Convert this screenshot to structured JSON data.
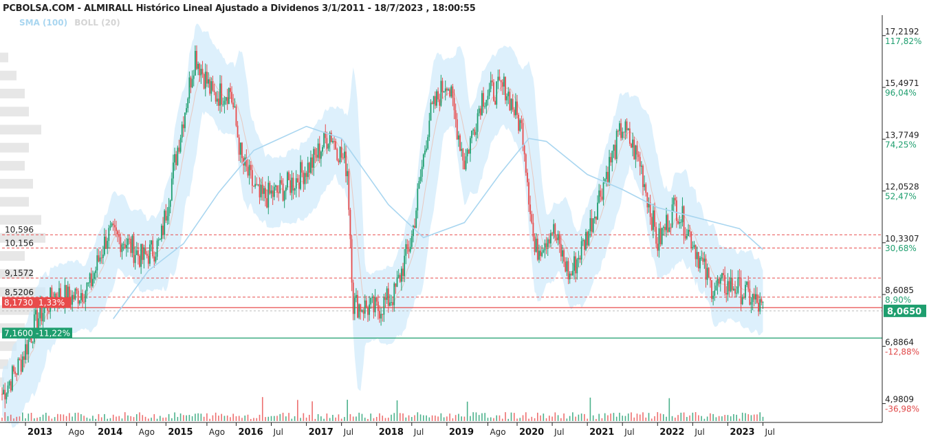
{
  "title": "PCBOLSA.COM - ALMIRALL Histórico Lineal Ajustado a Dividenos 3/1/2011 - 18/7/2023 , 18:00:55",
  "legend": [
    {
      "label": "SMA (100)",
      "color": "#a9d6f0"
    },
    {
      "label": "BOLL (20)",
      "color": "#d4d4d4"
    }
  ],
  "colors": {
    "up": "#1e9e6e",
    "down": "#e84b4b",
    "sma": "#a9d6f0",
    "band": "#cfe9fb",
    "bollMid": "#e8c8c0",
    "profile": "#e3e3e3"
  },
  "chart_data": {
    "type": "candlestick",
    "x_range": [
      "2012-09",
      "2023-08"
    ],
    "ylim": [
      4.4,
      17.9
    ],
    "x_ticks": [
      {
        "label": "2013",
        "x": "2013-01",
        "year": true
      },
      {
        "label": "Ago",
        "x": "2013-08"
      },
      {
        "label": "2014",
        "x": "2014-01",
        "year": true
      },
      {
        "label": "Ago",
        "x": "2014-08"
      },
      {
        "label": "2015",
        "x": "2015-01",
        "year": true
      },
      {
        "label": "Ago",
        "x": "2015-08"
      },
      {
        "label": "2016",
        "x": "2016-01",
        "year": true
      },
      {
        "label": "Jul",
        "x": "2016-07"
      },
      {
        "label": "2017",
        "x": "2017-01",
        "year": true
      },
      {
        "label": "Jul",
        "x": "2017-07"
      },
      {
        "label": "2018",
        "x": "2018-01",
        "year": true
      },
      {
        "label": "Jul",
        "x": "2018-07"
      },
      {
        "label": "2019",
        "x": "2019-01",
        "year": true
      },
      {
        "label": "Ago",
        "x": "2019-08"
      },
      {
        "label": "2020",
        "x": "2020-01",
        "year": true
      },
      {
        "label": "Jul",
        "x": "2020-07"
      },
      {
        "label": "2021",
        "x": "2021-01",
        "year": true
      },
      {
        "label": "Jul",
        "x": "2021-07"
      },
      {
        "label": "2022",
        "x": "2022-01",
        "year": true
      },
      {
        "label": "Jul",
        "x": "2022-07"
      },
      {
        "label": "2023",
        "x": "2023-01",
        "year": true
      },
      {
        "label": "Jul",
        "x": "2023-07"
      }
    ],
    "y_ticks": [
      {
        "value": 17.2192,
        "label": "17,2192",
        "pct": "117,82%",
        "dir": "up"
      },
      {
        "value": 15.4971,
        "label": "15,4971",
        "pct": "96,04%",
        "dir": "up"
      },
      {
        "value": 13.7749,
        "label": "13,7749",
        "pct": "74,25%",
        "dir": "up"
      },
      {
        "value": 12.0528,
        "label": "12,0528",
        "pct": "52,47%",
        "dir": "up"
      },
      {
        "value": 10.3307,
        "label": "10,3307",
        "pct": "30,68%",
        "dir": "up"
      },
      {
        "value": 8.6085,
        "label": "8,6085",
        "pct": "8,90%",
        "dir": "up"
      },
      {
        "value": 6.8864,
        "label": "6,8864",
        "pct": "-12,88%",
        "dir": "down"
      },
      {
        "value": 4.9809,
        "label": "4,9809",
        "pct": "-36,98%",
        "dir": "down"
      }
    ],
    "levels": [
      {
        "value": 10.596,
        "label": "10,596",
        "style": "dashed-red"
      },
      {
        "value": 10.156,
        "label": "10,156",
        "style": "dashed-red"
      },
      {
        "value": 9.1572,
        "label": "9,1572",
        "style": "dashed-red"
      },
      {
        "value": 8.5206,
        "label": "8,5206",
        "style": "dashed-red"
      },
      {
        "value": 8.173,
        "label": "8,1730",
        "pct": "1,33%",
        "style": "solid-red"
      },
      {
        "value": 7.16,
        "label": "7,1600",
        "pct": "-11,22%",
        "style": "solid-green"
      }
    ],
    "last_price": {
      "value": 8.065,
      "label": "8,0650"
    },
    "price_path": [
      [
        "2012-09",
        5.3
      ],
      [
        "2012-12",
        6.3
      ],
      [
        "2013-03",
        7.8
      ],
      [
        "2013-06",
        8.6
      ],
      [
        "2013-09",
        8.5
      ],
      [
        "2013-12",
        8.9
      ],
      [
        "2014-03",
        10.6
      ],
      [
        "2014-06",
        10.4
      ],
      [
        "2014-09",
        9.8
      ],
      [
        "2014-12",
        10.3
      ],
      [
        "2015-03",
        13.5
      ],
      [
        "2015-06",
        16.6
      ],
      [
        "2015-09",
        15.2
      ],
      [
        "2015-12",
        15.4
      ],
      [
        "2016-02",
        13.0
      ],
      [
        "2016-05",
        11.8
      ],
      [
        "2016-08",
        12.0
      ],
      [
        "2016-11",
        12.4
      ],
      [
        "2017-02",
        13.0
      ],
      [
        "2017-05",
        14.0
      ],
      [
        "2017-08",
        12.8
      ],
      [
        "2017-09",
        8.3
      ],
      [
        "2018-01",
        8.1
      ],
      [
        "2018-04",
        8.6
      ],
      [
        "2018-07",
        10.5
      ],
      [
        "2018-10",
        14.5
      ],
      [
        "2019-01",
        15.8
      ],
      [
        "2019-04",
        13.0
      ],
      [
        "2019-07",
        15.2
      ],
      [
        "2019-11",
        15.5
      ],
      [
        "2020-02",
        14.0
      ],
      [
        "2020-04",
        10.0
      ],
      [
        "2020-07",
        10.8
      ],
      [
        "2020-10",
        9.2
      ],
      [
        "2021-01",
        10.6
      ],
      [
        "2021-04",
        12.5
      ],
      [
        "2021-07",
        14.2
      ],
      [
        "2021-10",
        13.0
      ],
      [
        "2022-01",
        10.3
      ],
      [
        "2022-04",
        11.6
      ],
      [
        "2022-07",
        10.4
      ],
      [
        "2022-10",
        8.9
      ],
      [
        "2023-02",
        8.9
      ],
      [
        "2023-05",
        8.5
      ],
      [
        "2023-07",
        8.06
      ]
    ],
    "sma_100_path": [
      [
        "2014-04",
        7.8
      ],
      [
        "2014-10",
        9.4
      ],
      [
        "2015-04",
        10.3
      ],
      [
        "2015-10",
        12.0
      ],
      [
        "2016-04",
        13.4
      ],
      [
        "2017-01",
        14.2
      ],
      [
        "2017-07",
        13.8
      ],
      [
        "2018-03",
        11.6
      ],
      [
        "2018-09",
        10.5
      ],
      [
        "2019-04",
        11.0
      ],
      [
        "2019-10",
        12.6
      ],
      [
        "2020-03",
        13.8
      ],
      [
        "2020-06",
        13.7
      ],
      [
        "2021-01",
        12.6
      ],
      [
        "2021-07",
        12.1
      ],
      [
        "2022-01",
        11.5
      ],
      [
        "2022-07",
        11.2
      ],
      [
        "2023-03",
        10.8
      ],
      [
        "2023-07",
        10.1
      ]
    ],
    "volume_profile_levels": [
      5.6,
      6.2,
      6.8,
      7.4,
      8.0,
      8.6,
      9.2,
      9.8,
      10.4,
      11.0,
      11.6,
      12.2,
      12.8,
      13.4,
      14.0,
      14.6,
      15.2,
      15.8,
      16.4
    ],
    "volume_profile_widths": [
      0.05,
      0.1,
      0.2,
      0.3,
      0.45,
      0.55,
      0.4,
      0.3,
      0.55,
      0.5,
      0.35,
      0.4,
      0.3,
      0.35,
      0.5,
      0.35,
      0.3,
      0.2,
      0.1
    ]
  }
}
